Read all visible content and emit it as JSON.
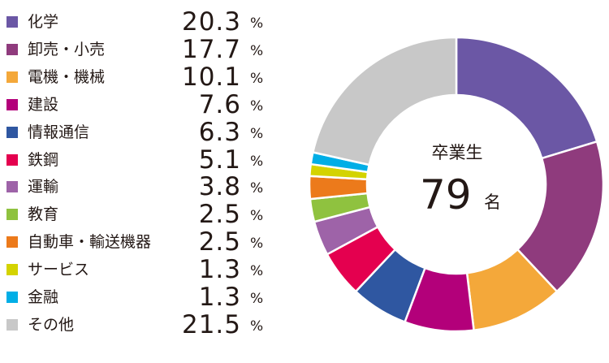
{
  "chart_data": {
    "type": "pie",
    "categories": [
      "化学",
      "卸売・小売",
      "電機・機械",
      "建設",
      "情報通信",
      "鉄鋼",
      "運輸",
      "教育",
      "自動車・輸送機器",
      "サービス",
      "金融",
      "その他"
    ],
    "values": [
      20.3,
      17.7,
      10.1,
      7.6,
      6.3,
      5.1,
      3.8,
      2.5,
      2.5,
      1.3,
      1.3,
      21.5
    ],
    "unit": "%",
    "center": {
      "title": "卒業生",
      "count": "79",
      "unit": "名"
    },
    "colors": [
      "#6b57a5",
      "#8f3b7d",
      "#f4a83a",
      "#b3007a",
      "#2f57a1",
      "#e4004f",
      "#9e63a8",
      "#8fc23f",
      "#ec7a1b",
      "#d4d300",
      "#00aee6",
      "#c8c8c8"
    ],
    "legend_position": "left"
  }
}
